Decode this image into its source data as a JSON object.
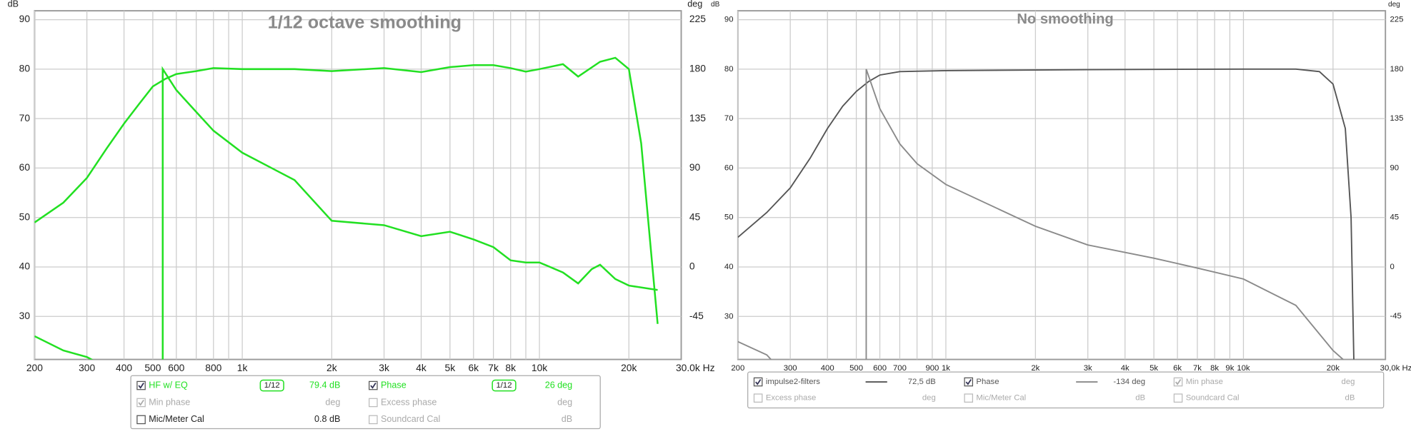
{
  "chart_data": [
    {
      "type": "line",
      "title": "1/12 octave smoothing",
      "y_unit": "dB",
      "y2_unit": "deg",
      "log_x": true,
      "grid": true,
      "xlim": [
        200,
        30000
      ],
      "ylim": [
        21.3,
        91.8
      ],
      "y2lim": [
        -84.2,
        233.1
      ],
      "xticks": [
        200,
        300,
        400,
        500,
        600,
        800,
        {
          "value": 1000,
          "label": "1k"
        },
        {
          "value": 2000,
          "label": "2k"
        },
        {
          "value": 3000,
          "label": "3k"
        },
        {
          "value": 4000,
          "label": "4k"
        },
        {
          "value": 5000,
          "label": "5k"
        },
        {
          "value": 6000,
          "label": "6k"
        },
        {
          "value": 7000,
          "label": "7k"
        },
        {
          "value": 8000,
          "label": "8k"
        },
        {
          "value": 10000,
          "label": "10k"
        },
        {
          "value": 20000,
          "label": "20k"
        },
        {
          "value": 30000,
          "label": "30.0k Hz"
        }
      ],
      "xgrid": [
        200,
        300,
        400,
        500,
        600,
        700,
        800,
        900,
        1000,
        2000,
        3000,
        4000,
        5000,
        6000,
        7000,
        8000,
        9000,
        10000,
        20000
      ],
      "yticks": [
        30,
        40,
        50,
        60,
        70,
        80,
        90
      ],
      "y2ticks": [
        -45,
        0,
        45,
        90,
        135,
        180,
        225
      ],
      "series": [
        {
          "name": "HF w/ EQ",
          "color": "#22e022",
          "x": [
            200,
            250,
            300,
            350,
            400,
            450,
            500,
            550,
            600,
            700,
            800,
            1000,
            1500,
            2000,
            3000,
            4000,
            5000,
            6000,
            7000,
            8000,
            9000,
            10000,
            12000,
            13500,
            16000,
            18000,
            20000,
            22000,
            24000,
            25000
          ],
          "values": [
            49,
            53,
            58,
            64,
            69,
            73,
            76.5,
            78,
            79,
            79.6,
            80.2,
            80,
            80,
            79.6,
            80.2,
            79.4,
            80.4,
            80.8,
            80.8,
            80.2,
            79.5,
            80,
            81,
            78.5,
            81.5,
            82.3,
            80,
            65,
            40,
            28.5
          ]
        },
        {
          "name": "Phase",
          "color": "#22e022",
          "axis": "y2",
          "x": [
            200,
            250,
            300,
            320,
            400,
            540,
            540,
            600,
            700,
            800,
            1000,
            1500,
            2000,
            3000,
            4000,
            5000,
            6000,
            7000,
            8000,
            9000,
            10000,
            12000,
            13500,
            15000,
            16000,
            18000,
            20000,
            25000
          ],
          "values": [
            -63,
            -76,
            -82,
            -86,
            null,
            -86,
            180,
            161,
            141,
            124,
            104,
            79,
            42,
            38,
            28,
            32,
            25,
            18,
            6,
            4,
            4,
            -5,
            -15,
            -2,
            2,
            -11,
            -17,
            -21
          ]
        }
      ]
    },
    {
      "type": "line",
      "title": "No smoothing",
      "y_unit": "dB",
      "y2_unit": "deg",
      "log_x": true,
      "grid": true,
      "xlim": [
        200,
        30000
      ],
      "ylim": [
        21.3,
        91.8
      ],
      "y2lim": [
        -84.2,
        233.1
      ],
      "xticks": [
        200,
        300,
        400,
        500,
        600,
        700,
        900,
        {
          "value": 1000,
          "label": "1k"
        },
        {
          "value": 2000,
          "label": "2k"
        },
        {
          "value": 3000,
          "label": "3k"
        },
        {
          "value": 4000,
          "label": "4k"
        },
        {
          "value": 5000,
          "label": "5k"
        },
        {
          "value": 6000,
          "label": "6k"
        },
        {
          "value": 7000,
          "label": "7k"
        },
        {
          "value": 8000,
          "label": "8k"
        },
        {
          "value": 9000,
          "label": "9k"
        },
        {
          "value": 10000,
          "label": "10k"
        },
        {
          "value": 20000,
          "label": "20k"
        },
        {
          "value": 30000,
          "label": "30,0k Hz"
        }
      ],
      "xgrid": [
        200,
        300,
        400,
        500,
        600,
        700,
        800,
        900,
        1000,
        2000,
        3000,
        4000,
        5000,
        6000,
        7000,
        8000,
        9000,
        10000,
        20000
      ],
      "yticks": [
        30,
        40,
        50,
        60,
        70,
        80,
        90
      ],
      "y2ticks": [
        -45,
        0,
        45,
        90,
        135,
        180,
        225
      ],
      "series": [
        {
          "name": "impulse2-filters",
          "color": "#555555",
          "x": [
            200,
            250,
            300,
            350,
            400,
            450,
            500,
            550,
            600,
            700,
            1000,
            3000,
            10000,
            15000,
            18000,
            20000,
            22000,
            23000,
            23500
          ],
          "values": [
            46,
            51,
            56,
            62,
            68,
            72.5,
            75.5,
            77.5,
            78.8,
            79.5,
            79.7,
            79.9,
            80,
            80,
            79.5,
            77,
            68,
            50,
            21
          ]
        },
        {
          "name": "Phase",
          "color": "#8a8a8a",
          "axis": "y2",
          "x": [
            200,
            250,
            260,
            300,
            540,
            540,
            600,
            700,
            800,
            1000,
            2000,
            3000,
            5000,
            7000,
            10000,
            15000,
            20000,
            22000
          ],
          "values": [
            -68,
            -80,
            -85,
            null,
            -86,
            180,
            144,
            112,
            94,
            75,
            37,
            20,
            8,
            -1,
            -11,
            -35,
            -76,
            -86
          ]
        }
      ]
    }
  ],
  "legends": [
    {
      "rows": [
        [
          {
            "label": "HF w/ EQ",
            "checked": true,
            "enabled": true,
            "color": "#22e022",
            "smoothing": "1/12",
            "value": "79.4 dB"
          },
          {
            "label": "Phase",
            "checked": true,
            "enabled": true,
            "color": "#22e022",
            "smoothing": "1/12",
            "value": "26 deg"
          }
        ],
        [
          {
            "label": "Min phase",
            "checked": true,
            "enabled": false,
            "color": "#aaaaaa",
            "value": "deg"
          },
          {
            "label": "Excess phase",
            "checked": false,
            "enabled": false,
            "color": "#aaaaaa",
            "value": "deg"
          }
        ],
        [
          {
            "label": "Mic/Meter Cal",
            "checked": false,
            "enabled": true,
            "color": "#222222",
            "value": "0.8 dB"
          },
          {
            "label": "Soundcard Cal",
            "checked": false,
            "enabled": false,
            "color": "#aaaaaa",
            "value": "dB"
          }
        ]
      ]
    },
    {
      "rows": [
        [
          {
            "label": "impulse2-filters",
            "checked": true,
            "enabled": true,
            "color": "#555555",
            "line": "#555555",
            "value": "72,5 dB"
          },
          {
            "label": "Phase",
            "checked": true,
            "enabled": true,
            "color": "#555555",
            "line": "#8a8a8a",
            "value": "-134 deg"
          },
          {
            "label": "Min phase",
            "checked": true,
            "enabled": false,
            "color": "#aaaaaa",
            "value": "deg"
          }
        ],
        [
          {
            "label": "Excess phase",
            "checked": false,
            "enabled": false,
            "color": "#aaaaaa",
            "value": "deg"
          },
          {
            "label": "Mic/Meter Cal",
            "checked": false,
            "enabled": false,
            "color": "#aaaaaa",
            "value": "dB"
          },
          {
            "label": "Soundcard Cal",
            "checked": false,
            "enabled": false,
            "color": "#aaaaaa",
            "value": "dB"
          }
        ]
      ]
    }
  ]
}
